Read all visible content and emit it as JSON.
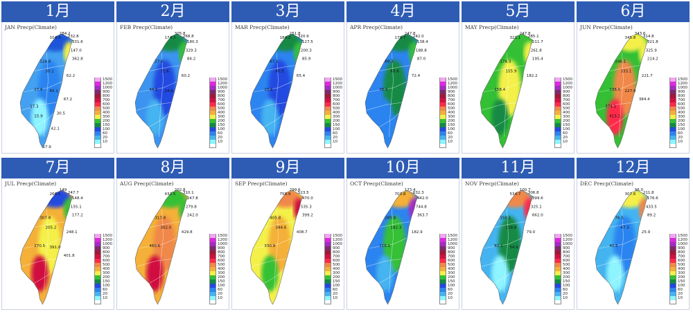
{
  "legend": {
    "levels": [
      "1500",
      "1200",
      "1000",
      "900",
      "800",
      "700",
      "600",
      "500",
      "400",
      "300",
      "200",
      "150",
      "100",
      "60",
      "20",
      "10"
    ],
    "colors": [
      "#f2a6f2",
      "#e028e0",
      "#a42cc4",
      "#7e2a6a",
      "#a0183a",
      "#d01040",
      "#ff2a48",
      "#f08848",
      "#f4b038",
      "#f4f04a",
      "#34c034",
      "#128a44",
      "#2448e0",
      "#2c84f0",
      "#44b4f0",
      "#8ef4ff",
      "#ffffff"
    ]
  },
  "months": [
    {
      "header": "1月",
      "title": "JAN Precp(Climate)",
      "colors": {
        "base": "#44a0f0",
        "north": "#1c54d8",
        "ne": "#f4f04a",
        "mountain": "#2c84f0",
        "south": "#8ef4ff"
      },
      "values": [
        "104.3",
        "284.2",
        "232.8",
        "331.6",
        "147.0",
        "362.8",
        "124.8",
        "30.1",
        "62.2",
        "27.6",
        "65.1",
        "67.2",
        "17.3",
        "15.9",
        "30.5",
        "42.1",
        "17.9"
      ]
    },
    {
      "header": "2月",
      "title": "FEB Precp(Climate)",
      "colors": {
        "base": "#3c94f0",
        "north": "#128a44",
        "ne": "#34c034",
        "mountain": "#2448e0",
        "south": "#44b4f0"
      },
      "values": [
        "174.3",
        "305.8",
        "268.8",
        "180.3",
        "329.3",
        "84.2",
        "27.6",
        "71.6",
        "60.2",
        "44.5",
        "24.6"
      ]
    },
    {
      "header": "3月",
      "title": "MAR Precp(Climate)",
      "colors": {
        "base": "#2c84f0",
        "north": "#128a44",
        "ne": "#34c034",
        "mountain": "#2448e0",
        "south": "#44b4f0"
      },
      "values": [
        "184.2",
        "251.8",
        "320.9",
        "127.5",
        "200.3",
        "85.9",
        "67.1",
        "40.5",
        "65.4",
        "20.6"
      ]
    },
    {
      "header": "4月",
      "title": "APR Precp(Climate)",
      "colors": {
        "base": "#2c84f0",
        "north": "#128a44",
        "ne": "#34c034",
        "mountain": "#128a44",
        "south": "#2c84f0"
      },
      "values": [
        "179.7",
        "247.8",
        "242.0",
        "138.4",
        "188.8",
        "87.0",
        "89.3",
        "65.6",
        "72.4",
        "36.5"
      ]
    },
    {
      "header": "5月",
      "title": "MAY Precp(Climate)",
      "colors": {
        "base": "#34c034",
        "north": "#34c034",
        "ne": "#f4f04a",
        "mountain": "#f4f04a",
        "south": "#128a44"
      },
      "values": [
        "321.1",
        "247.8",
        "285.1",
        "211.7",
        "261.8",
        "195.4",
        "174.3",
        "155.9",
        "182.2",
        "158.4"
      ]
    },
    {
      "header": "6月",
      "title": "JUN Precp(Climate)",
      "colors": {
        "base": "#34c034",
        "north": "#f4f04a",
        "ne": "#f4f04a",
        "mountain": "#f08848",
        "south": "#ff2a48"
      },
      "values": [
        "345.8",
        "343.6",
        "314.8",
        "321.8",
        "325.9",
        "214.2",
        "246.1",
        "333.1",
        "221.7",
        "198.5",
        "227.9",
        "384.4",
        "374.1",
        "415.1"
      ]
    },
    {
      "header": "7月",
      "title": "JUL Precp(Climate)",
      "colors": {
        "base": "#f4b038",
        "north": "#2448e0",
        "ne": "#34c034",
        "mountain": "#f4f04a",
        "south": "#d01040"
      },
      "values": [
        "266.1",
        "149",
        "247.7",
        "148.4",
        "155.1",
        "177.2",
        "307.8",
        "205.2",
        "248.1",
        "270.5",
        "391.0",
        "401.8"
      ]
    },
    {
      "header": "8月",
      "title": "AUG Precp(Climate)",
      "colors": {
        "base": "#f4b038",
        "north": "#34c034",
        "ne": "#34c034",
        "mountain": "#f08848",
        "south": "#d01040"
      },
      "values": [
        "432.5",
        "202.8",
        "310.1",
        "247.8",
        "279.8",
        "242.0",
        "317.8",
        "302.0",
        "429.8",
        "460.6"
      ]
    },
    {
      "header": "9月",
      "title": "SEP Precp(Climate)",
      "colors": {
        "base": "#f4f04a",
        "north": "#f08848",
        "ne": "#d01040",
        "mountain": "#f4b038",
        "south": "#34c034"
      },
      "values": [
        "758.9",
        "299.6",
        "523.5",
        "470.0",
        "535.3",
        "399.2",
        "405.8",
        "344.6",
        "408.7",
        "330.9"
      ]
    },
    {
      "header": "10月",
      "title": "OCT Precp(Climate)",
      "colors": {
        "base": "#2c84f0",
        "north": "#f4b038",
        "ne": "#a42cc4",
        "mountain": "#34c034",
        "south": "#44b4f0"
      },
      "values": [
        "703.8",
        "173.4",
        "632.3",
        "442.0",
        "744.8",
        "363.7",
        "285.8",
        "182.3",
        "182.9",
        "116.5"
      ]
    },
    {
      "header": "11月",
      "title": "NOV Precp(Climate)",
      "colors": {
        "base": "#44b4f0",
        "north": "#f08848",
        "ne": "#ff2a48",
        "mountain": "#128a44",
        "south": "#8ef4ff"
      },
      "values": [
        "534.7",
        "100.7",
        "306.8",
        "399.6",
        "325.1",
        "662.0",
        "150.1",
        "128.8",
        "79.0",
        "82.1",
        "54.6"
      ]
    },
    {
      "header": "12月",
      "title": "DEC Precp(Climate)",
      "colors": {
        "base": "#44b4f0",
        "north": "#f4f04a",
        "ne": "#f08848",
        "mountain": "#2c84f0",
        "south": "#8ef4ff"
      },
      "values": [
        "307.6",
        "96.0",
        "211.8",
        "176.6",
        "433.5",
        "89.2",
        "76.5",
        "47.3",
        "25.9",
        "40.5"
      ]
    }
  ]
}
